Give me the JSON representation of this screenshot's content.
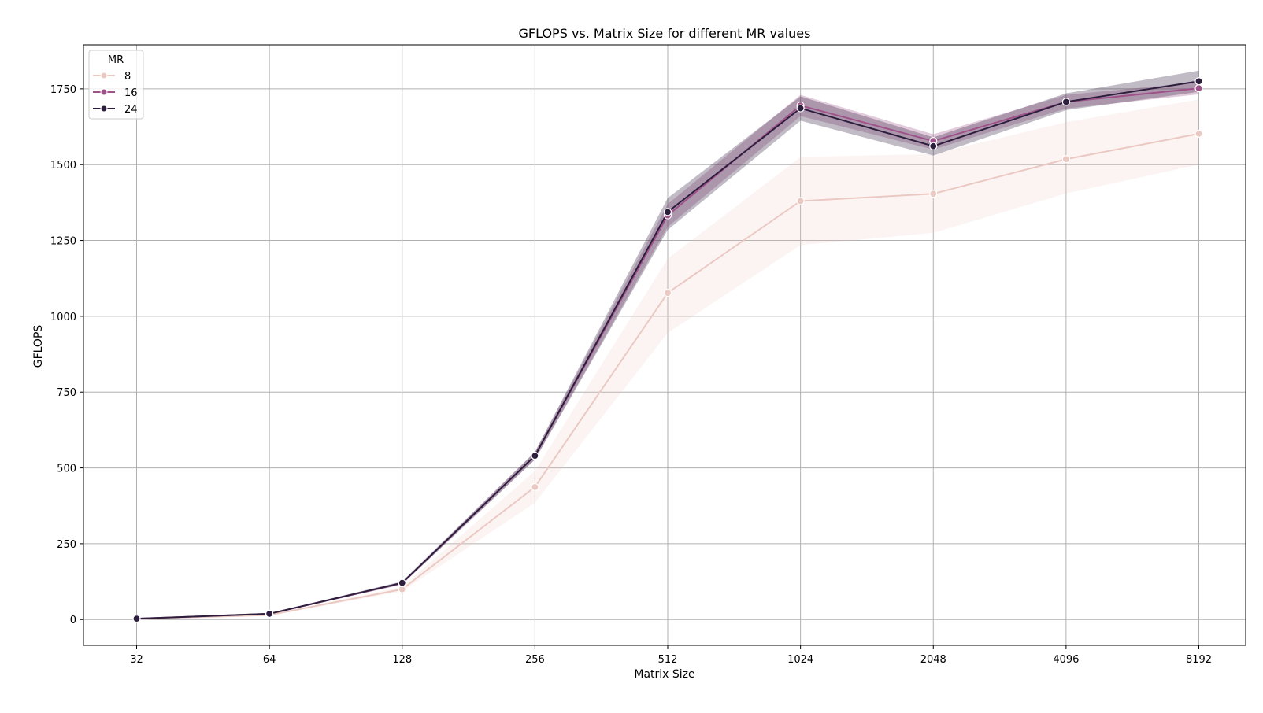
{
  "chart_data": {
    "type": "line",
    "title": "GFLOPS vs. Matrix Size for different MR values",
    "xlabel": "Matrix Size",
    "ylabel": "GFLOPS",
    "x_scale": "categorical (log2)",
    "categories": [
      "32",
      "64",
      "128",
      "256",
      "512",
      "1024",
      "2048",
      "4096",
      "8192"
    ],
    "ylim": [
      -85,
      1895
    ],
    "yticks": [
      0,
      250,
      500,
      750,
      1000,
      1250,
      1500,
      1750
    ],
    "grid": true,
    "legend": {
      "title": "MR",
      "placement": "top-left"
    },
    "series": [
      {
        "name": "8",
        "color": "#ebc9c3",
        "values": [
          2,
          15,
          100,
          437,
          1077,
          1380,
          1404,
          1518,
          1602
        ],
        "ci_low": [
          1,
          13,
          93,
          385,
          945,
          1235,
          1275,
          1405,
          1500
        ],
        "ci_high": [
          3,
          17,
          108,
          490,
          1190,
          1525,
          1535,
          1640,
          1715
        ]
      },
      {
        "name": "16",
        "color": "#9e5289",
        "values": [
          3,
          19,
          120,
          540,
          1333,
          1695,
          1578,
          1707,
          1752
        ],
        "ci_low": [
          2,
          17,
          116,
          528,
          1295,
          1660,
          1550,
          1685,
          1732
        ],
        "ci_high": [
          4,
          21,
          124,
          552,
          1370,
          1730,
          1600,
          1730,
          1772
        ]
      },
      {
        "name": "24",
        "color": "#2d1e3e",
        "values": [
          3,
          19,
          121,
          540,
          1344,
          1686,
          1561,
          1707,
          1775
        ],
        "ci_low": [
          2,
          17,
          116,
          527,
          1285,
          1645,
          1530,
          1680,
          1740
        ],
        "ci_high": [
          4,
          21,
          126,
          553,
          1390,
          1725,
          1590,
          1735,
          1810
        ]
      }
    ]
  }
}
